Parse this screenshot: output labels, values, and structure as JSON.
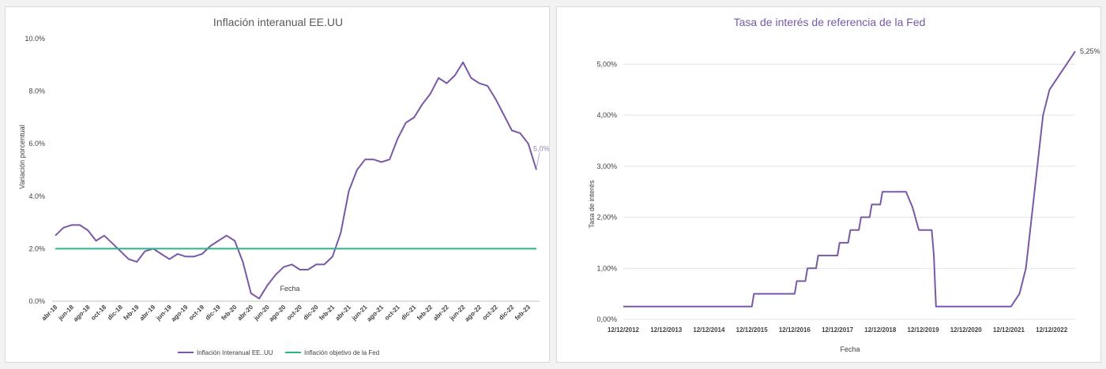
{
  "chart_data": [
    {
      "type": "line",
      "title": "Inflación interanual EE.UU",
      "xlabel": "Fecha",
      "ylabel": "Variación porcentual",
      "ylim": [
        0,
        10
      ],
      "y_ticks": [
        "0.0%",
        "2.0%",
        "4.0%",
        "6.0%",
        "8.0%",
        "10.0%"
      ],
      "y_tick_values": [
        0,
        2,
        4,
        6,
        8,
        10
      ],
      "x_tick_labels": [
        "abr-18",
        "jun-18",
        "ago-18",
        "oct-18",
        "dic-18",
        "feb-19",
        "abr-19",
        "jun-19",
        "ago-19",
        "oct-19",
        "dic-19",
        "feb-20",
        "abr-20",
        "jun-20",
        "ago-20",
        "oct-20",
        "dic-20",
        "feb-21",
        "abr-21",
        "jun-21",
        "ago-21",
        "oct-21",
        "dic-21",
        "feb-22",
        "abr-22",
        "jun-22",
        "ago-22",
        "oct-22",
        "dic-22",
        "feb-23"
      ],
      "grid": false,
      "legend_position": "bottom",
      "series": [
        {
          "name": "Inflación Interanual EE..UU",
          "color": "#7a58a8",
          "values": [
            2.5,
            2.8,
            2.9,
            2.9,
            2.7,
            2.3,
            2.5,
            2.2,
            1.9,
            1.6,
            1.5,
            1.9,
            2.0,
            1.8,
            1.6,
            1.8,
            1.7,
            1.7,
            1.8,
            2.1,
            2.3,
            2.5,
            2.3,
            1.5,
            0.3,
            0.1,
            0.6,
            1.0,
            1.3,
            1.4,
            1.2,
            1.2,
            1.4,
            1.4,
            1.7,
            2.6,
            4.2,
            5.0,
            5.4,
            5.4,
            5.3,
            5.4,
            6.2,
            6.8,
            7.0,
            7.5,
            7.9,
            8.5,
            8.3,
            8.6,
            9.1,
            8.5,
            8.3,
            8.2,
            7.7,
            7.1,
            6.5,
            6.4,
            6.0,
            5.0
          ]
        },
        {
          "name": "Inflación objetivo de la Fed",
          "color": "#2db38a",
          "values": [
            2.0,
            2.0
          ]
        }
      ],
      "annotation": "5,0%"
    },
    {
      "type": "line",
      "title": "Tasa de interés de referencia de la Fed",
      "xlabel": "Fecha",
      "ylabel": "Tasa de interés",
      "ylim": [
        0,
        5.5
      ],
      "y_ticks": [
        "0,00%",
        "1,00%",
        "2,00%",
        "3,00%",
        "4,00%",
        "5,00%"
      ],
      "y_tick_values": [
        0,
        1,
        2,
        3,
        4,
        5
      ],
      "x_tick_labels": [
        "12/12/2012",
        "12/12/2013",
        "12/12/2014",
        "12/12/2015",
        "12/12/2016",
        "12/12/2017",
        "12/12/2018",
        "12/12/2019",
        "12/12/2020",
        "12/12/2021",
        "12/12/2022"
      ],
      "x_range": [
        2012.95,
        2023.5
      ],
      "grid": true,
      "series": [
        {
          "name": "",
          "color": "#7a58a8",
          "points": [
            [
              2012.95,
              0.25
            ],
            [
              2015.95,
              0.25
            ],
            [
              2016.0,
              0.5
            ],
            [
              2016.95,
              0.5
            ],
            [
              2017.0,
              0.75
            ],
            [
              2017.2,
              0.75
            ],
            [
              2017.25,
              1.0
            ],
            [
              2017.45,
              1.0
            ],
            [
              2017.5,
              1.25
            ],
            [
              2017.95,
              1.25
            ],
            [
              2018.0,
              1.5
            ],
            [
              2018.2,
              1.5
            ],
            [
              2018.25,
              1.75
            ],
            [
              2018.45,
              1.75
            ],
            [
              2018.5,
              2.0
            ],
            [
              2018.7,
              2.0
            ],
            [
              2018.75,
              2.25
            ],
            [
              2018.95,
              2.25
            ],
            [
              2019.0,
              2.5
            ],
            [
              2019.55,
              2.5
            ],
            [
              2019.7,
              2.2
            ],
            [
              2019.85,
              1.75
            ],
            [
              2020.15,
              1.75
            ],
            [
              2020.2,
              1.25
            ],
            [
              2020.25,
              0.25
            ],
            [
              2022.0,
              0.25
            ],
            [
              2022.2,
              0.5
            ],
            [
              2022.35,
              1.0
            ],
            [
              2022.55,
              2.5
            ],
            [
              2022.75,
              4.0
            ],
            [
              2022.9,
              4.5
            ],
            [
              2023.5,
              5.25
            ]
          ]
        }
      ],
      "annotation": "5,25%"
    }
  ]
}
